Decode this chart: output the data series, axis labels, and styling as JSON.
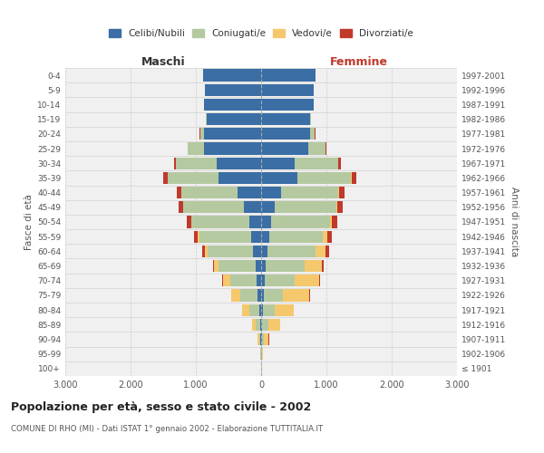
{
  "age_groups": [
    "100+",
    "95-99",
    "90-94",
    "85-89",
    "80-84",
    "75-79",
    "70-74",
    "65-69",
    "60-64",
    "55-59",
    "50-54",
    "45-49",
    "40-44",
    "35-39",
    "30-34",
    "25-29",
    "20-24",
    "15-19",
    "10-14",
    "5-9",
    "0-4"
  ],
  "birth_years": [
    "≤ 1901",
    "1902-1906",
    "1907-1911",
    "1912-1916",
    "1917-1921",
    "1922-1926",
    "1927-1931",
    "1932-1936",
    "1937-1941",
    "1942-1946",
    "1947-1951",
    "1952-1956",
    "1957-1961",
    "1962-1966",
    "1967-1971",
    "1972-1976",
    "1977-1981",
    "1982-1986",
    "1987-1991",
    "1992-1996",
    "1997-2001"
  ],
  "maschi": {
    "celibi": [
      2,
      4,
      8,
      18,
      30,
      50,
      65,
      90,
      120,
      150,
      185,
      260,
      360,
      650,
      680,
      880,
      880,
      840,
      870,
      860,
      890
    ],
    "coniugati": [
      2,
      7,
      25,
      70,
      150,
      270,
      410,
      560,
      700,
      800,
      880,
      930,
      860,
      780,
      630,
      240,
      55,
      8,
      3,
      1,
      1
    ],
    "vedovi": [
      1,
      4,
      18,
      55,
      105,
      140,
      115,
      75,
      35,
      18,
      8,
      4,
      2,
      1,
      1,
      0,
      0,
      0,
      0,
      0,
      0
    ],
    "divorziati": [
      0,
      0,
      0,
      2,
      3,
      4,
      8,
      18,
      45,
      55,
      65,
      75,
      75,
      65,
      28,
      8,
      4,
      1,
      0,
      0,
      0
    ]
  },
  "femmine": {
    "nubili": [
      1,
      4,
      8,
      15,
      25,
      40,
      50,
      70,
      100,
      120,
      150,
      210,
      300,
      550,
      520,
      720,
      750,
      750,
      800,
      800,
      830
    ],
    "coniugate": [
      2,
      8,
      35,
      90,
      185,
      300,
      460,
      600,
      740,
      820,
      900,
      940,
      880,
      830,
      660,
      270,
      75,
      8,
      2,
      0,
      0
    ],
    "vedove": [
      4,
      18,
      75,
      185,
      290,
      400,
      385,
      265,
      140,
      75,
      35,
      18,
      8,
      4,
      2,
      1,
      0,
      0,
      0,
      0,
      0
    ],
    "divorziate": [
      0,
      0,
      1,
      2,
      4,
      6,
      10,
      22,
      55,
      65,
      75,
      80,
      85,
      75,
      38,
      12,
      4,
      1,
      0,
      0,
      0
    ]
  },
  "colors": {
    "celibi": "#3A6EA5",
    "coniugati": "#B5C9A0",
    "vedovi": "#F5C86E",
    "divorziati": "#C0392B"
  },
  "xlim": 3000,
  "xtick_vals": [
    -3000,
    -2000,
    -1000,
    0,
    1000,
    2000,
    3000
  ],
  "xtick_labels": [
    "3.000",
    "2.000",
    "1.000",
    "0",
    "1.000",
    "2.000",
    "3.000"
  ],
  "title": "Popolazione per età, sesso e stato civile - 2002",
  "subtitle": "COMUNE DI RHO (MI) - Dati ISTAT 1° gennaio 2002 - Elaborazione TUTTITALIA.IT",
  "label_maschi": "Maschi",
  "label_femmine": "Femmine",
  "ylabel_left": "Fasce di età",
  "ylabel_right": "Anni di nascita",
  "legend_labels": [
    "Celibi/Nubili",
    "Coniugati/e",
    "Vedovi/e",
    "Divorziati/e"
  ],
  "bg_color": "#f0f0f0",
  "grid_color": "#cccccc"
}
